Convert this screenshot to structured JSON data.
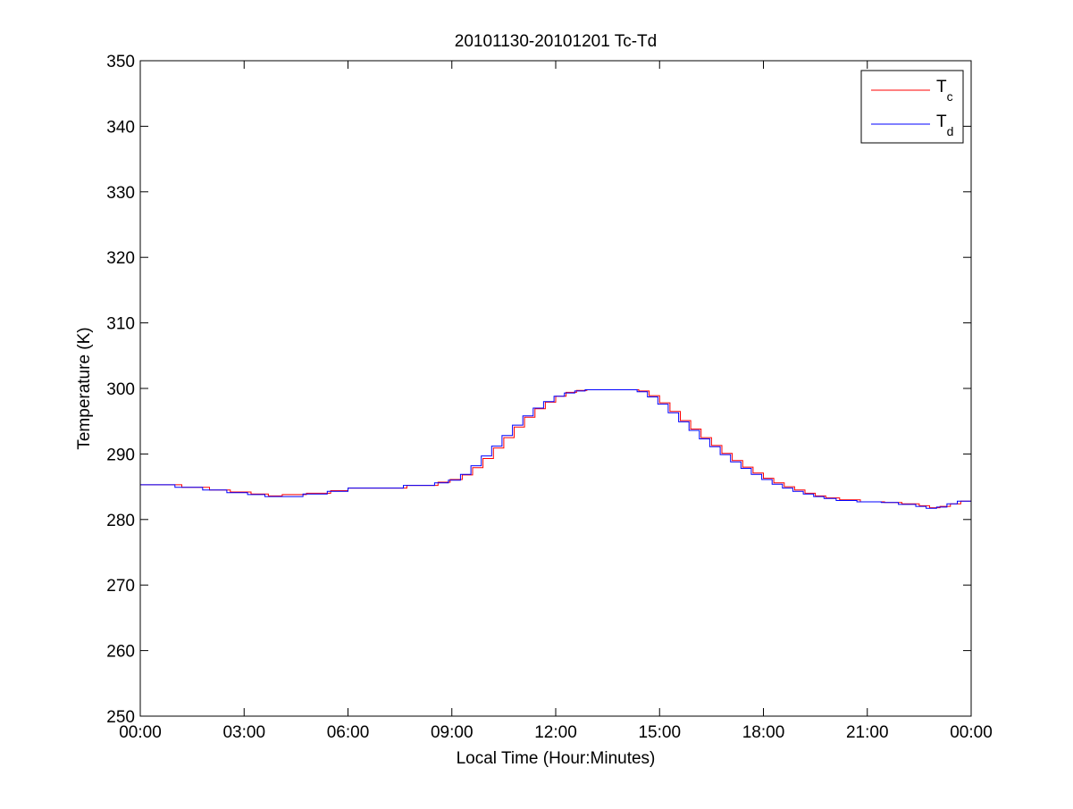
{
  "chart_data": {
    "type": "line",
    "title": "20101130-20101201 Tc-Td",
    "xlabel": "Local Time (Hour:Minutes)",
    "ylabel": "Temperature (K)",
    "xlim": [
      0,
      24
    ],
    "ylim": [
      250,
      350
    ],
    "grid": false,
    "legend_position": "top-right",
    "x_tick_values": [
      0,
      3,
      6,
      9,
      12,
      15,
      18,
      21,
      24
    ],
    "x_tick_labels": [
      "00:00",
      "03:00",
      "06:00",
      "09:00",
      "12:00",
      "15:00",
      "18:00",
      "21:00",
      "00:00"
    ],
    "y_tick_values": [
      250,
      260,
      270,
      280,
      290,
      300,
      310,
      320,
      330,
      340,
      350
    ],
    "y_tick_labels": [
      "250",
      "260",
      "270",
      "280",
      "290",
      "300",
      "310",
      "320",
      "330",
      "340",
      "350"
    ],
    "series": [
      {
        "name": "T",
        "name_subscript": "c",
        "color": "#ff0000",
        "x": [
          0,
          0.5,
          1.2,
          2.0,
          2.6,
          3.2,
          3.7,
          4.1,
          4.8,
          5.5,
          6.0,
          7.7,
          8.6,
          8.95,
          9.3,
          9.6,
          9.9,
          10.2,
          10.5,
          10.8,
          11.1,
          11.4,
          11.7,
          12.0,
          12.3,
          12.6,
          12.9,
          13.2,
          13.5,
          13.8,
          14.1,
          14.4,
          14.7,
          15.0,
          15.3,
          15.6,
          15.9,
          16.2,
          16.5,
          16.8,
          17.1,
          17.4,
          17.7,
          18.0,
          18.3,
          18.6,
          18.9,
          19.2,
          19.5,
          19.8,
          20.2,
          20.8,
          21.5,
          22.0,
          22.5,
          22.8,
          23.1,
          23.4,
          23.7,
          24.0
        ],
        "y": [
          285.3,
          285.3,
          284.9,
          284.5,
          284.2,
          283.9,
          283.6,
          283.8,
          284.0,
          284.4,
          284.8,
          285.2,
          285.7,
          286.1,
          286.8,
          287.9,
          289.3,
          290.9,
          292.5,
          294.1,
          295.6,
          296.9,
          297.9,
          298.8,
          299.4,
          299.7,
          299.8,
          299.8,
          299.8,
          299.8,
          299.8,
          299.6,
          298.9,
          297.8,
          296.5,
          295.1,
          293.8,
          292.5,
          291.3,
          290.1,
          289.0,
          288.0,
          287.1,
          286.3,
          285.6,
          285.0,
          284.5,
          284.0,
          283.6,
          283.3,
          283.0,
          282.7,
          282.6,
          282.4,
          282.1,
          281.8,
          282.0,
          282.4,
          282.8,
          283.0
        ]
      },
      {
        "name": "T",
        "name_subscript": "d",
        "color": "#0000ff",
        "x": [
          0,
          0.5,
          1.0,
          1.8,
          2.5,
          3.1,
          3.6,
          4.0,
          4.7,
          5.4,
          6.0,
          7.6,
          8.5,
          8.9,
          9.25,
          9.55,
          9.85,
          10.15,
          10.45,
          10.75,
          11.05,
          11.35,
          11.65,
          11.95,
          12.25,
          12.55,
          12.85,
          13.15,
          13.45,
          13.75,
          14.05,
          14.35,
          14.65,
          14.95,
          15.25,
          15.55,
          15.85,
          16.15,
          16.45,
          16.75,
          17.05,
          17.35,
          17.65,
          17.95,
          18.25,
          18.55,
          18.85,
          19.15,
          19.45,
          19.75,
          20.1,
          20.7,
          21.4,
          21.9,
          22.4,
          22.7,
          23.0,
          23.3,
          23.6,
          24.0
        ],
        "y": [
          285.3,
          285.3,
          284.9,
          284.5,
          284.1,
          283.8,
          283.5,
          283.5,
          283.9,
          284.3,
          284.8,
          285.2,
          285.6,
          286.0,
          286.9,
          288.2,
          289.7,
          291.2,
          292.8,
          294.4,
          295.8,
          297.0,
          298.0,
          298.8,
          299.3,
          299.6,
          299.8,
          299.8,
          299.8,
          299.8,
          299.8,
          299.5,
          298.7,
          297.6,
          296.3,
          294.9,
          293.6,
          292.3,
          291.1,
          289.9,
          288.8,
          287.8,
          286.9,
          286.1,
          285.4,
          284.8,
          284.3,
          283.9,
          283.5,
          283.2,
          282.9,
          282.7,
          282.6,
          282.3,
          282.0,
          281.7,
          281.9,
          282.4,
          282.8,
          283.0
        ]
      }
    ]
  }
}
